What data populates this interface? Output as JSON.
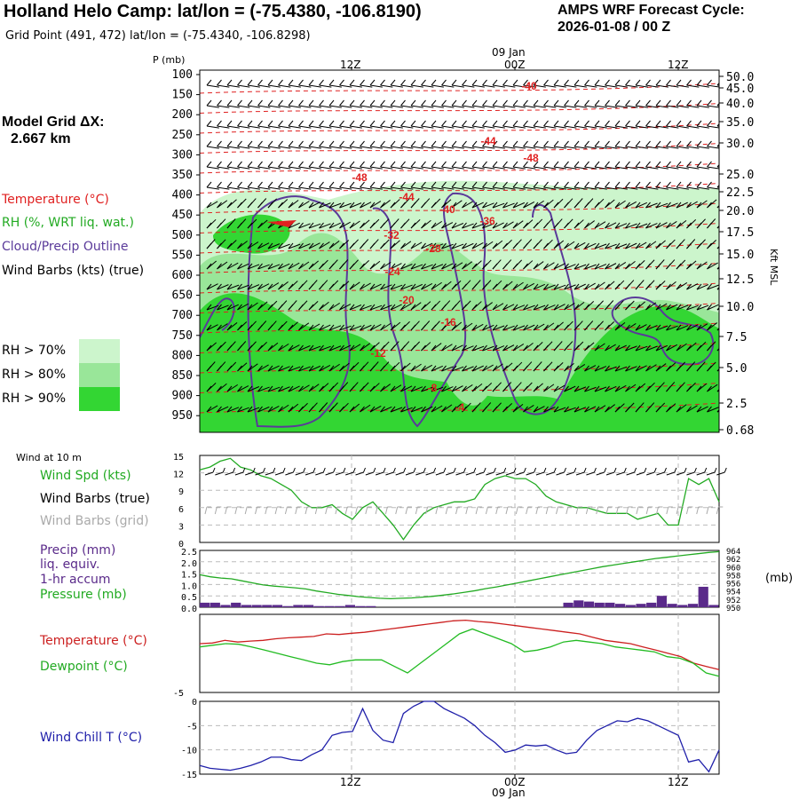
{
  "header": {
    "title": "Holland Helo Camp:  lat/lon = (-75.4380, -106.8190)",
    "subtitle": "Grid Point (491, 472) lat/lon = (-75.4340, -106.8298)",
    "cycle_label": "AMPS WRF Forecast Cycle:",
    "cycle_value": "2026-01-08 / 00  Z",
    "model_grid_label": "Model Grid ΔX:",
    "model_grid_value": "2.667 km"
  },
  "time_axis": {
    "top_ticks": [
      "12Z",
      "00Z",
      "12Z"
    ],
    "date_label": "09 Jan",
    "bottom_ticks": [
      "12Z",
      "00Z",
      "12Z"
    ]
  },
  "profile_legend": {
    "temperature": "Temperature (°C)",
    "rh": "RH (%, WRT liq. wat.)",
    "cloud": "Cloud/Precip Outline",
    "wind": "Wind Barbs (kts) (true)",
    "rh_levels": [
      "RH > 70%",
      "RH > 80%",
      "RH > 90%"
    ]
  },
  "colors": {
    "rh70": "#ccf5cc",
    "rh80": "#99e699",
    "rh90": "#33d633",
    "temperature": "#e02020",
    "cloud": "#5a3a9a",
    "wind_spd": "#22aa22",
    "grid_barbs": "#aaaaaa",
    "precip": "#5a2a8a",
    "pressure": "#22aa22",
    "dewpoint": "#22bb22",
    "wind_chill": "#2020aa"
  },
  "surface_legend": {
    "wind_title": "Wind at 10 m",
    "wind_spd": "Wind Spd (kts)",
    "barbs_true": "Wind Barbs (true)",
    "barbs_grid": "Wind Barbs (grid)",
    "precip": "Precip (mm)",
    "liq_equiv": "liq. equiv.",
    "accum": "1-hr accum",
    "pressure": "Pressure (mb)",
    "temperature": "Temperature (°C)",
    "dewpoint": "Dewpoint (°C)",
    "wind_chill": "Wind Chill T (°C)",
    "mb_unit": "(mb)"
  },
  "chart_data": [
    {
      "type": "heatmap",
      "name": "vertical profile",
      "ylabel": "P (mb)",
      "y2label": "Kft MSL",
      "pressure_ticks": [
        "100",
        "150",
        "200",
        "250",
        "300",
        "350",
        "400",
        "450",
        "500",
        "550",
        "600",
        "650",
        "700",
        "750",
        "800",
        "850",
        "900",
        "950"
      ],
      "height_ticks": [
        "50.0",
        "45.0",
        "40.0",
        "35.0",
        "30.0",
        "25.0",
        "22.5",
        "20.0",
        "17.5",
        "15.0",
        "12.5",
        "10.0",
        "7.5",
        "5.0",
        "2.5",
        "0.68"
      ],
      "temperature_labels": [
        {
          "text": "-40"
        },
        {
          "text": "-44"
        },
        {
          "text": "-48"
        },
        {
          "text": "-48"
        },
        {
          "text": "-44"
        },
        {
          "text": "-40"
        },
        {
          "text": "-36"
        },
        {
          "text": "-32"
        },
        {
          "text": "-28"
        },
        {
          "text": "-24"
        },
        {
          "text": "-20"
        },
        {
          "text": "-16"
        },
        {
          "text": "-12"
        },
        {
          "text": "-8"
        },
        {
          "text": "-4"
        }
      ]
    },
    {
      "type": "line",
      "name": "wind speed 10 m",
      "yticks": [
        "15",
        "12",
        "9",
        "6",
        "3",
        "0"
      ],
      "ylim": [
        0,
        15
      ],
      "series": [
        {
          "name": "Wind Spd (kts)",
          "values": [
            12.5,
            13,
            14,
            14.5,
            13,
            12.5,
            11.5,
            11,
            10,
            9,
            7,
            6,
            6,
            6.5,
            5,
            4,
            6,
            7,
            5,
            3,
            0.5,
            3,
            5,
            6,
            6.5,
            7,
            7,
            7.5,
            10,
            11,
            11.5,
            11,
            11,
            10,
            8,
            7,
            6.5,
            6,
            6,
            5.5,
            5,
            5,
            5,
            4,
            4.5,
            5,
            3,
            3,
            11,
            10,
            11,
            7
          ]
        }
      ]
    },
    {
      "type": "bar",
      "name": "precip and pressure",
      "yticks": [
        "2.5",
        "2.0",
        "1.5",
        "1.0",
        "0.5",
        "0.0"
      ],
      "y2ticks": [
        "964",
        "962",
        "960",
        "958",
        "956",
        "954",
        "952",
        "950"
      ],
      "ylim": [
        0,
        2.5
      ],
      "y2lim": [
        950,
        964
      ],
      "precip": [
        0.2,
        0.2,
        0.1,
        0.2,
        0.1,
        0.1,
        0.1,
        0.1,
        0.05,
        0.1,
        0.1,
        0.05,
        0.05,
        0.05,
        0.1,
        0.05,
        0.05,
        0,
        0,
        0,
        0,
        0,
        0,
        0,
        0,
        0,
        0,
        0,
        0,
        0,
        0,
        0,
        0,
        0,
        0,
        0.2,
        0.3,
        0.25,
        0.2,
        0.2,
        0.15,
        0.1,
        0.15,
        0.2,
        0.5,
        0.15,
        0.1,
        0.15,
        0.9,
        0.1
      ],
      "pressure": [
        958,
        957.5,
        957.2,
        957,
        956.5,
        956,
        955.5,
        955.2,
        955,
        954.8,
        954.5,
        954,
        953.6,
        953.2,
        952.9,
        952.6,
        952.4,
        952.2,
        952.1,
        952.2,
        952.3,
        952.5,
        952.7,
        953,
        953.3,
        953.7,
        954.1,
        954.6,
        955,
        955.5,
        956,
        956.5,
        957,
        957.5,
        958,
        958.5,
        959,
        959.5,
        960,
        960.4,
        960.8,
        961.2,
        961.6,
        962,
        962.3,
        962.6,
        962.9,
        963.2,
        963.5,
        963.7
      ]
    },
    {
      "type": "line",
      "name": "temperature dewpoint",
      "yticks": [
        "-5"
      ],
      "ylim": [
        -22,
        2
      ],
      "series": [
        {
          "name": "Temperature (°C)",
          "values": [
            -7,
            -6.8,
            -6,
            -6.5,
            -6.2,
            -6,
            -5.5,
            -5.2,
            -5,
            -4.8,
            -4,
            -4.2,
            -3.8,
            -3.5,
            -3,
            -2.5,
            -2,
            -1.5,
            -1,
            -0.5,
            0,
            0.2,
            -0.2,
            -0.5,
            -1,
            -1.5,
            -2,
            -2.5,
            -3,
            -3.5,
            -4,
            -5,
            -6,
            -6.5,
            -7,
            -8,
            -9,
            -10,
            -11,
            -13,
            -14,
            -15
          ]
        },
        {
          "name": "Dewpoint (°C)",
          "values": [
            -8,
            -7.5,
            -7,
            -7.2,
            -8,
            -9,
            -10,
            -11,
            -12,
            -13,
            -13.5,
            -12.5,
            -12,
            -12,
            -12,
            -14,
            -16,
            -13,
            -10,
            -7,
            -4,
            -2.5,
            -4,
            -5.5,
            -7,
            -9.5,
            -9,
            -8,
            -6.5,
            -6,
            -6.5,
            -7,
            -8,
            -8.5,
            -9,
            -9.5,
            -11,
            -11.5,
            -13,
            -16,
            -17
          ]
        }
      ]
    },
    {
      "type": "line",
      "name": "wind chill",
      "yticks": [
        "0",
        "-5",
        "-10",
        "-15"
      ],
      "ylim": [
        -15,
        0
      ],
      "series": [
        {
          "name": "Wind Chill T (°C)",
          "values": [
            -13.2,
            -13.8,
            -14,
            -14.2,
            -13.8,
            -13.2,
            -12.5,
            -11.5,
            -11.5,
            -12,
            -12.2,
            -11,
            -10,
            -7,
            -6.4,
            -6.2,
            -1.5,
            -6,
            -8,
            -8.5,
            -2.5,
            -1,
            0,
            0,
            -1.5,
            -2.5,
            -3.5,
            -5,
            -7,
            -8.5,
            -10.5,
            -10,
            -9,
            -9.2,
            -9,
            -10,
            -10.8,
            -10.5,
            -8,
            -6,
            -5,
            -4,
            -4.2,
            -3.5,
            -4,
            -5,
            -6,
            -7,
            -12.5,
            -12,
            -14.5,
            -10
          ]
        }
      ]
    }
  ]
}
